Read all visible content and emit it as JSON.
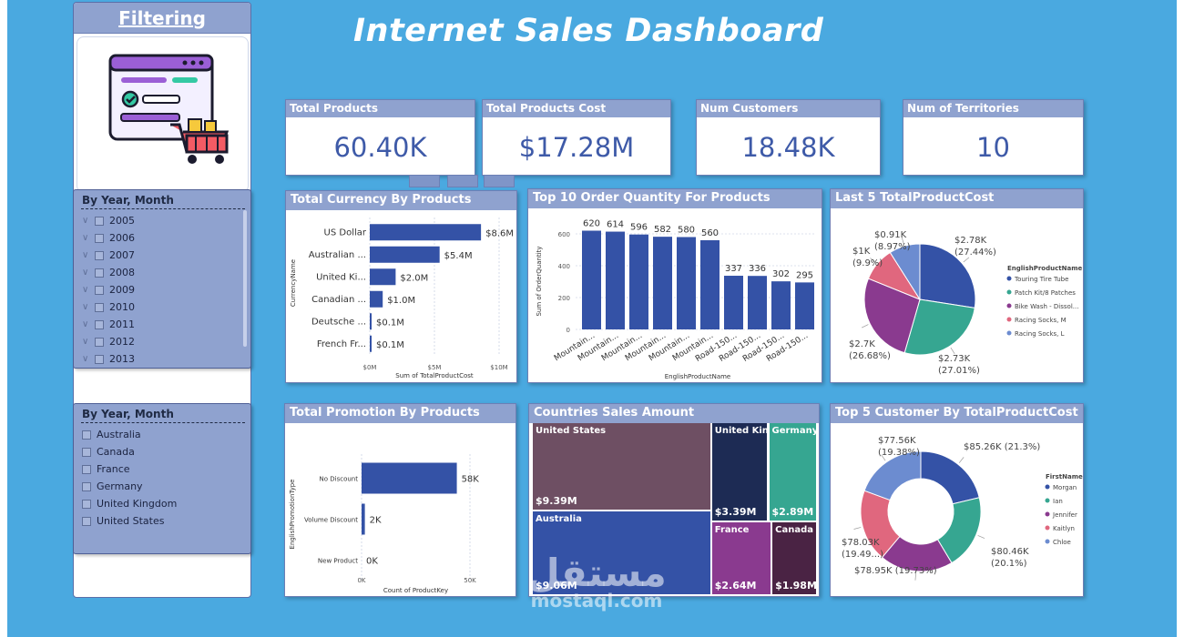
{
  "dashboard": {
    "title": "Internet Sales Dashboard",
    "filter_panel_title": "Filtering",
    "watermark_text": "mostaql.com",
    "watermark_ar": "مستقل"
  },
  "slicers": [
    {
      "title": "By Year, Month",
      "items": [
        "2005",
        "2006",
        "2007",
        "2008",
        "2009",
        "2010",
        "2011",
        "2012",
        "2013"
      ]
    },
    {
      "title": "By Year, Month",
      "items": [
        "Australia",
        "Canada",
        "France",
        "Germany",
        "United Kingdom",
        "United States"
      ]
    }
  ],
  "kpis": [
    {
      "label": "Total Products",
      "value": "60.40K"
    },
    {
      "label": "Total Products Cost",
      "value": "$17.28M"
    },
    {
      "label": "Num Customers",
      "value": "18.48K"
    },
    {
      "label": "Num of Territories",
      "value": "10"
    }
  ],
  "chart_data": [
    {
      "type": "bar",
      "title": "Total Currency By Products",
      "orientation": "horizontal",
      "categories": [
        "US Dollar",
        "Australian ...",
        "United Ki...",
        "Canadian ...",
        "Deutsche ...",
        "French Fr..."
      ],
      "values": [
        8.6,
        5.4,
        2.0,
        1.0,
        0.1,
        0.1
      ],
      "value_labels": [
        "$8.6M",
        "$5.4M",
        "$2.0M",
        "$1.0M",
        "$0.1M",
        "$0.1M"
      ],
      "xlabel": "Sum of TotalProductCost",
      "ylabel": "CurrencyName",
      "xticks": [
        "$0M",
        "$5M",
        "$10M"
      ],
      "xlim": [
        0,
        10
      ],
      "color": "#3452a6"
    },
    {
      "type": "bar",
      "title": "Top 10 Order Quantity For Products",
      "orientation": "vertical",
      "categories": [
        "Mountain...",
        "Mountain...",
        "Mountain...",
        "Mountain...",
        "Mountain...",
        "Mountain...",
        "Road-150...",
        "Road-150...",
        "Road-150...",
        "Road-150..."
      ],
      "values": [
        620,
        614,
        596,
        582,
        580,
        560,
        337,
        336,
        302,
        295
      ],
      "xlabel": "EnglishProductName",
      "ylabel": "Sum of OrderQuantity",
      "yticks": [
        "0",
        "200",
        "400",
        "600"
      ],
      "ylim": [
        0,
        680
      ],
      "color": "#3452a6"
    },
    {
      "type": "pie",
      "title": "Last 5 TotalProductCost",
      "legend_title": "EnglishProductName",
      "legend_position": "right",
      "labels": [
        "Touring Tire Tube",
        "Patch Kit/8 Patches",
        "Bike Wash - Dissol...",
        "Racing Socks, M",
        "Racing Socks, L"
      ],
      "values": [
        2.78,
        2.73,
        2.7,
        1.0,
        0.91
      ],
      "value_labels": [
        "$2.78K",
        "$2.73K",
        "$2.7K",
        "$1K",
        "$0.91K"
      ],
      "percent_labels": [
        "(27.44%)",
        "(27.01%)",
        "(26.68%)",
        "(9.9%)",
        "(8.97%)"
      ],
      "colors": [
        "#3452a6",
        "#36a691",
        "#8a3a8f",
        "#e0677e",
        "#6c8cd0"
      ]
    },
    {
      "type": "bar",
      "title": "Total Promotion By Products",
      "orientation": "horizontal",
      "categories": [
        "No Discount",
        "Volume Discount",
        "New Product"
      ],
      "values": [
        58,
        2,
        0
      ],
      "value_labels": [
        "58K",
        "2K",
        "0K"
      ],
      "xlabel": "Count of ProductKey",
      "ylabel": "EnglishPromotionType",
      "xticks": [
        "0K",
        "50K"
      ],
      "xlim": [
        0,
        66
      ],
      "color": "#3452a6"
    },
    {
      "type": "heatmap",
      "subtype": "treemap",
      "title": "Countries Sales Amount",
      "labels": [
        "United States",
        "Australia",
        "United Kin...",
        "Germany",
        "France",
        "Canada"
      ],
      "values": [
        9.39,
        9.06,
        3.39,
        2.89,
        2.64,
        1.98
      ],
      "value_labels": [
        "$9.39M",
        "$9.06M",
        "$3.39M",
        "$2.89M",
        "$2.64M",
        "$1.98M"
      ],
      "colors": [
        "#6e4f63",
        "#3452a6",
        "#1d2b54",
        "#36a691",
        "#8a3a8f",
        "#4a2344"
      ]
    },
    {
      "type": "pie",
      "subtype": "donut",
      "title": "Top 5 Customer By TotalProductCost",
      "legend_title": "FirstName",
      "legend_position": "right",
      "labels": [
        "Morgan",
        "Ian",
        "Jennifer",
        "Kaitlyn",
        "Chloe"
      ],
      "values": [
        85.26,
        80.46,
        78.95,
        78.03,
        77.56
      ],
      "value_labels": [
        "$85.26K (21.3%)",
        "$80.46K",
        "$78.95K (19.73%)",
        "$78.03K",
        "$77.56K"
      ],
      "percent_labels": [
        "",
        "(20.1%)",
        "",
        "(19.49...)",
        "(19.38%)"
      ],
      "colors": [
        "#3452a6",
        "#36a691",
        "#8a3a8f",
        "#e0677e",
        "#6c8cd0"
      ]
    }
  ]
}
